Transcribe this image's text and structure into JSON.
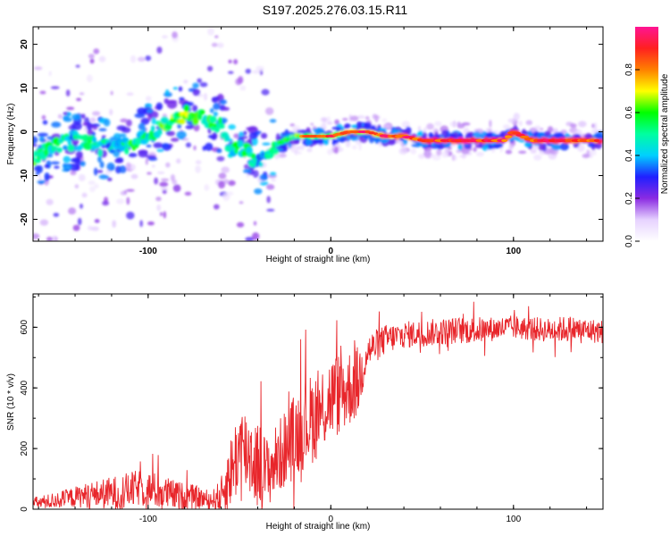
{
  "figure_title": "S197.2025.276.03.15.R11",
  "chart_data": [
    {
      "type": "heatmap",
      "name": "spectrogram",
      "title": "S197.2025.276.03.15.R11",
      "xlabel": "Height of straight line (km)",
      "ylabel": "Frequency (Hz)",
      "xlim": [
        -163,
        149
      ],
      "ylim": [
        -25,
        24
      ],
      "xticks": [
        -100,
        0,
        100
      ],
      "yticks": [
        -20,
        -10,
        0,
        10,
        20
      ],
      "grid": false,
      "colorbar": {
        "label": "Normalized spectral amplitude",
        "range": [
          0,
          1
        ],
        "ticks": [
          0.0,
          0.2,
          0.4,
          0.6,
          0.8
        ],
        "colors": [
          "#ffffff",
          "#e6d2ff",
          "#8a2be2",
          "#2020ff",
          "#00d0ff",
          "#00ffa0",
          "#00ff00",
          "#ffff00",
          "#ff8000",
          "#ff2020",
          "#ff1493"
        ]
      },
      "ridge_track": {
        "x": [
          -163,
          -150,
          -140,
          -130,
          -120,
          -110,
          -100,
          -90,
          -80,
          -75,
          -70,
          -65,
          -60,
          -55,
          -50,
          -45,
          -40,
          -35,
          -30,
          -25,
          -20,
          -10,
          0,
          10,
          20,
          30,
          40,
          50,
          60,
          70,
          75,
          80,
          85,
          90,
          95,
          100,
          110,
          120,
          130,
          140,
          149
        ],
        "y": [
          -6,
          -3,
          -2,
          -3,
          -4,
          -3,
          -1,
          2,
          4,
          4,
          3,
          2,
          1,
          -4,
          -3,
          -5,
          -7,
          -6,
          -3,
          -2,
          -1,
          -1,
          -1,
          0,
          0,
          -1,
          -1,
          -2,
          -2,
          -2,
          -2,
          -2,
          -2,
          -2,
          -2,
          0,
          -2,
          -2,
          -2,
          -2,
          -2
        ],
        "amplitude": [
          0.5,
          0.45,
          0.4,
          0.45,
          0.4,
          0.5,
          0.45,
          0.55,
          0.6,
          0.6,
          0.55,
          0.5,
          0.55,
          0.45,
          0.5,
          0.45,
          0.4,
          0.45,
          0.5,
          0.55,
          0.55,
          0.6,
          0.65,
          0.7,
          0.75,
          0.75,
          0.8,
          0.85,
          0.85,
          0.9,
          0.9,
          0.85,
          0.9,
          0.9,
          0.85,
          0.9,
          0.9,
          0.9,
          0.9,
          0.85,
          0.85
        ]
      }
    },
    {
      "type": "line",
      "name": "snr",
      "xlabel": "Height of straight line (km)",
      "ylabel": "SNR (10 * v/v)",
      "xlim": [
        -163,
        149
      ],
      "ylim": [
        0,
        710
      ],
      "xticks": [
        -100,
        0,
        100
      ],
      "yticks": [
        0,
        200,
        400,
        600
      ],
      "grid": false,
      "series": [
        {
          "name": "SNR",
          "color": "#e8262b",
          "x": [
            -163,
            -155,
            -145,
            -135,
            -125,
            -115,
            -105,
            -95,
            -85,
            -75,
            -65,
            -60,
            -55,
            -50,
            -45,
            -40,
            -35,
            -30,
            -25,
            -20,
            -15,
            -10,
            -5,
            0,
            5,
            10,
            15,
            20,
            30,
            40,
            50,
            60,
            70,
            80,
            90,
            100,
            110,
            120,
            130,
            140,
            149
          ],
          "mean": [
            20,
            25,
            35,
            45,
            50,
            55,
            70,
            60,
            45,
            40,
            30,
            45,
            120,
            200,
            190,
            150,
            120,
            160,
            200,
            240,
            280,
            300,
            330,
            370,
            380,
            400,
            420,
            520,
            560,
            575,
            580,
            585,
            590,
            590,
            595,
            600,
            595,
            590,
            595,
            590,
            585
          ],
          "amp": [
            20,
            25,
            30,
            40,
            50,
            60,
            60,
            60,
            50,
            40,
            30,
            60,
            120,
            150,
            150,
            150,
            120,
            120,
            130,
            140,
            150,
            150,
            150,
            140,
            140,
            130,
            120,
            60,
            50,
            45,
            45,
            45,
            45,
            45,
            40,
            40,
            40,
            40,
            45,
            40,
            40
          ]
        }
      ]
    }
  ]
}
